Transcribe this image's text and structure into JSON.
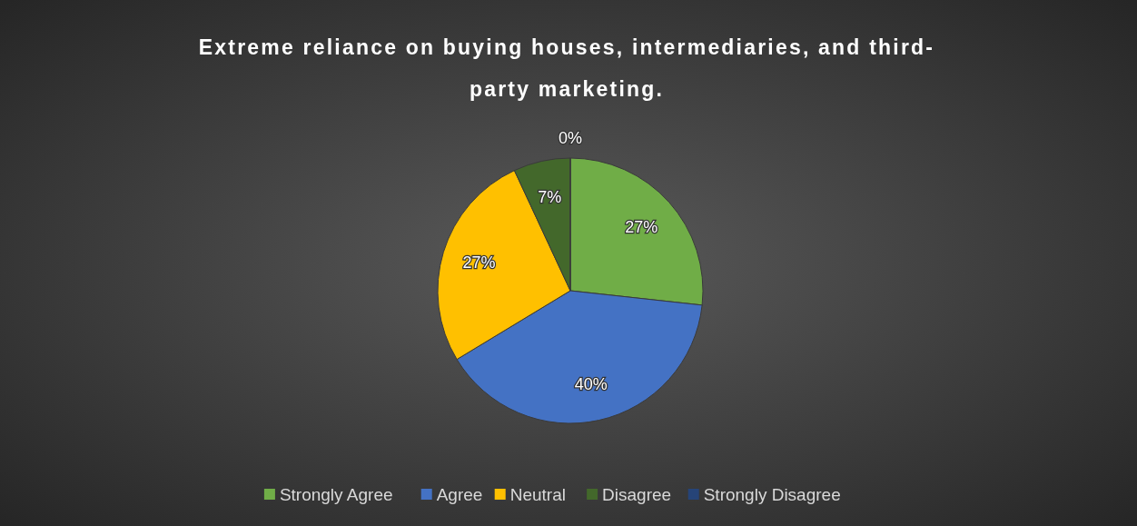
{
  "chart_data": {
    "type": "pie",
    "title": "Extreme reliance on buying houses, intermediaries, and third-party marketing.",
    "categories": [
      "Strongly Agree",
      "Agree",
      "Neutral",
      "Disagree",
      "Strongly Disagree"
    ],
    "values": [
      27,
      40,
      27,
      7,
      0
    ],
    "colors": [
      "#70ad47",
      "#4472c4",
      "#ffc000",
      "#43682b",
      "#264478"
    ],
    "value_labels": [
      "27%",
      "40%",
      "27%",
      "7%",
      "0%"
    ],
    "legend": "bottom"
  }
}
